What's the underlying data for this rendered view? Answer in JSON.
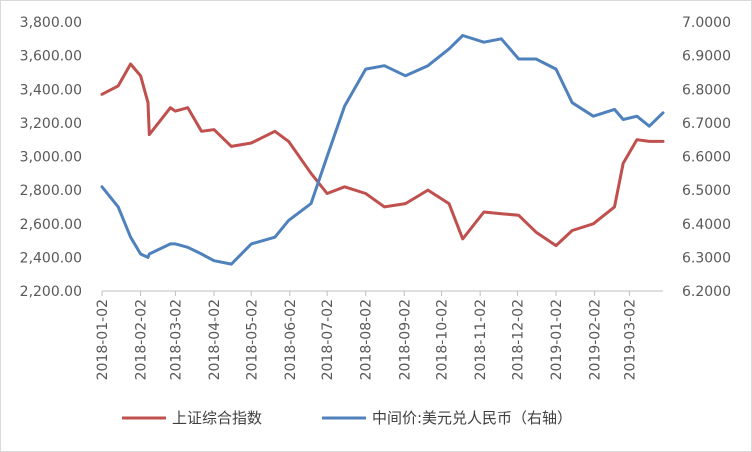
{
  "chart_data": {
    "type": "line",
    "title": "",
    "x_tick_labels": [
      "2018-01-02",
      "2018-02-02",
      "2018-03-02",
      "2018-04-02",
      "2018-05-02",
      "2018-06-02",
      "2018-07-02",
      "2018-08-02",
      "2018-09-02",
      "2018-10-02",
      "2018-11-02",
      "2018-12-02",
      "2019-01-02",
      "2019-02-02",
      "2019-03-02"
    ],
    "y_left": {
      "min": 2200,
      "max": 3800,
      "ticks": [
        "2,200.00",
        "2,400.00",
        "2,600.00",
        "2,800.00",
        "3,000.00",
        "3,200.00",
        "3,400.00",
        "3,600.00",
        "3,800.00"
      ]
    },
    "y_right": {
      "min": 6.2,
      "max": 7.0,
      "ticks": [
        "6.2000",
        "6.3000",
        "6.4000",
        "6.5000",
        "6.6000",
        "6.7000",
        "6.8000",
        "6.9000",
        "7.0000"
      ]
    },
    "x": [
      "2018-01-02",
      "2018-01-15",
      "2018-01-25",
      "2018-02-02",
      "2018-02-08",
      "2018-02-09",
      "2018-02-26",
      "2018-03-02",
      "2018-03-12",
      "2018-03-23",
      "2018-04-02",
      "2018-04-16",
      "2018-05-02",
      "2018-05-21",
      "2018-06-01",
      "2018-06-19",
      "2018-07-02",
      "2018-07-16",
      "2018-08-02",
      "2018-08-17",
      "2018-09-03",
      "2018-09-21",
      "2018-10-08",
      "2018-10-19",
      "2018-11-05",
      "2018-11-19",
      "2018-12-03",
      "2018-12-17",
      "2019-01-02",
      "2019-01-15",
      "2019-02-01",
      "2019-02-18",
      "2019-02-25",
      "2019-03-08",
      "2019-03-18",
      "2019-03-29"
    ],
    "series": [
      {
        "name": "上证综合指数",
        "axis": "left",
        "color": "#c0504d",
        "values": [
          3370,
          3420,
          3550,
          3480,
          3320,
          3130,
          3290,
          3270,
          3290,
          3150,
          3160,
          3060,
          3080,
          3150,
          3090,
          2900,
          2780,
          2820,
          2780,
          2700,
          2720,
          2800,
          2720,
          2510,
          2670,
          2660,
          2650,
          2550,
          2470,
          2560,
          2600,
          2700,
          2960,
          3100,
          3090,
          3090
        ]
      },
      {
        "name": "中间价:美元兑人民币（右轴）",
        "axis": "right",
        "color": "#4f81bd",
        "values": [
          6.51,
          6.45,
          6.36,
          6.31,
          6.3,
          6.31,
          6.34,
          6.34,
          6.33,
          6.31,
          6.29,
          6.28,
          6.34,
          6.36,
          6.41,
          6.46,
          6.6,
          6.75,
          6.86,
          6.87,
          6.84,
          6.87,
          6.92,
          6.96,
          6.94,
          6.95,
          6.89,
          6.89,
          6.86,
          6.76,
          6.72,
          6.74,
          6.71,
          6.72,
          6.69,
          6.73
        ]
      }
    ],
    "legend": {
      "placement": "bottom"
    },
    "grid": false
  }
}
